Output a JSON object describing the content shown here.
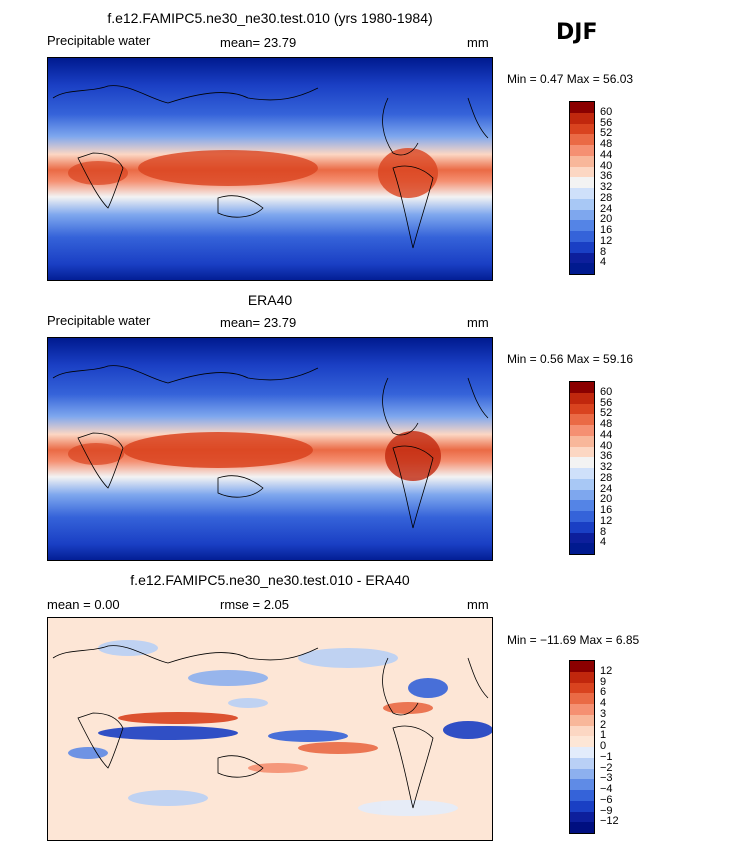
{
  "season": "DJF",
  "panels": [
    {
      "title": "f.e12.FAMIPC5.ne30_ne30.test.010 (yrs 1980-1984)",
      "left_label": "Precipitable water",
      "center_label": "mean=  23.79",
      "right_label": "mm",
      "minmax": "Min =    0.47  Max =   56.03",
      "colorbar_labels": [
        "60",
        "56",
        "52",
        "48",
        "44",
        "40",
        "36",
        "32",
        "28",
        "24",
        "20",
        "16",
        "12",
        "8",
        "4"
      ],
      "colors": [
        "#8b0000",
        "#c1270d",
        "#d9431f",
        "#ea6a45",
        "#f59072",
        "#f8b79a",
        "#fcd7c3",
        "#f3f3f3",
        "#cfe0fa",
        "#a8c8f5",
        "#7ea7ee",
        "#5484e6",
        "#3563d9",
        "#1a3fc4",
        "#0d1f9c",
        "#001a8f"
      ]
    },
    {
      "title": "ERA40",
      "left_label": "Precipitable water",
      "center_label": "mean=  23.79",
      "right_label": "mm",
      "minmax": "Min =    0.56  Max =   59.16",
      "colorbar_labels": [
        "60",
        "56",
        "52",
        "48",
        "44",
        "40",
        "36",
        "32",
        "28",
        "24",
        "20",
        "16",
        "12",
        "8",
        "4"
      ],
      "colors": [
        "#8b0000",
        "#c1270d",
        "#d9431f",
        "#ea6a45",
        "#f59072",
        "#f8b79a",
        "#fcd7c3",
        "#f3f3f3",
        "#cfe0fa",
        "#a8c8f5",
        "#7ea7ee",
        "#5484e6",
        "#3563d9",
        "#1a3fc4",
        "#0d1f9c",
        "#001a8f"
      ]
    },
    {
      "title": "f.e12.FAMIPC5.ne30_ne30.test.010 - ERA40",
      "left_label": "mean =    0.00",
      "center_label": "rmse =    2.05",
      "right_label": "mm",
      "minmax": "Min = −11.69  Max =    6.85",
      "colorbar_labels": [
        "12",
        "9",
        "6",
        "4",
        "3",
        "2",
        "1",
        "0",
        "−1",
        "−2",
        "−3",
        "−4",
        "−6",
        "−9",
        "−12"
      ],
      "colors": [
        "#8b0000",
        "#c1270d",
        "#d9431f",
        "#ea6a45",
        "#f59072",
        "#f8b79a",
        "#fcd7c3",
        "#fde6d6",
        "#e3ecfb",
        "#b9d0f6",
        "#8db0ef",
        "#5f8be6",
        "#3563d9",
        "#1a3fc4",
        "#0d1f9c",
        "#000f80"
      ]
    }
  ]
}
